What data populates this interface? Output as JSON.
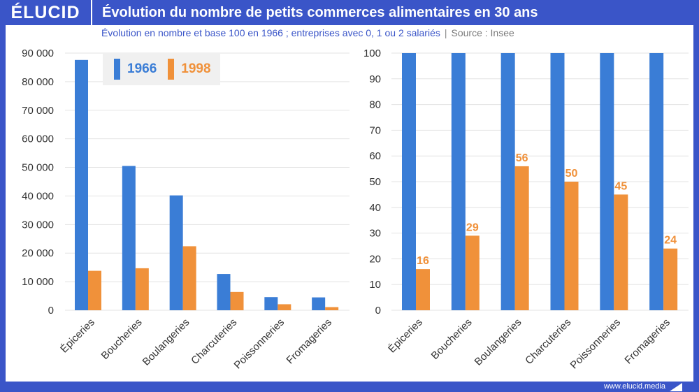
{
  "header": {
    "logo": "ÉLUCID",
    "title": "Évolution du nombre de petits commerces alimentaires en 30 ans",
    "subtitle_main": "Évolution en nombre et base 100 en 1966 ; entreprises avec 0, 1 ou 2 salariés",
    "subtitle_separator": "|",
    "subtitle_source": "Source : Insee"
  },
  "footer": {
    "url": "www.elucid.media"
  },
  "colors": {
    "brand": "#3a55c8",
    "series_1966": "#3a7dd6",
    "series_1998": "#f0913a",
    "grid": "#e3e3e3",
    "axis_text": "#333333"
  },
  "legend": [
    {
      "label": "1966",
      "color": "#3a7dd6"
    },
    {
      "label": "1998",
      "color": "#f0913a"
    }
  ],
  "chart_data": [
    {
      "type": "bar",
      "categories": [
        "Épiceries",
        "Boucheries",
        "Boulangeries",
        "Charcuteries",
        "Poissonneries",
        "Fromageries"
      ],
      "series": [
        {
          "name": "1966",
          "values": [
            87600,
            50500,
            40200,
            12700,
            4600,
            4500
          ]
        },
        {
          "name": "1998",
          "values": [
            13800,
            14700,
            22400,
            6400,
            2100,
            1100
          ]
        }
      ],
      "ylim": [
        0,
        90000
      ],
      "yticks": [
        "0",
        "10 000",
        "20 000",
        "30 000",
        "40 000",
        "50 000",
        "60 000",
        "70 000",
        "80 000",
        "90 000"
      ],
      "grid": true,
      "legend_position": "top-left"
    },
    {
      "type": "bar",
      "categories": [
        "Épiceries",
        "Boucheries",
        "Boulangeries",
        "Charcuteries",
        "Poissonneries",
        "Fromageries"
      ],
      "series": [
        {
          "name": "1966",
          "values": [
            100,
            100,
            100,
            100,
            100,
            100
          ]
        },
        {
          "name": "1998",
          "values": [
            16,
            29,
            56,
            50,
            45,
            24
          ],
          "labels": [
            "16",
            "29",
            "56",
            "50",
            "45",
            "24"
          ]
        }
      ],
      "ylim": [
        0,
        100
      ],
      "yticks": [
        "0",
        "10",
        "20",
        "30",
        "40",
        "50",
        "60",
        "70",
        "80",
        "90",
        "100"
      ],
      "grid": true
    }
  ]
}
